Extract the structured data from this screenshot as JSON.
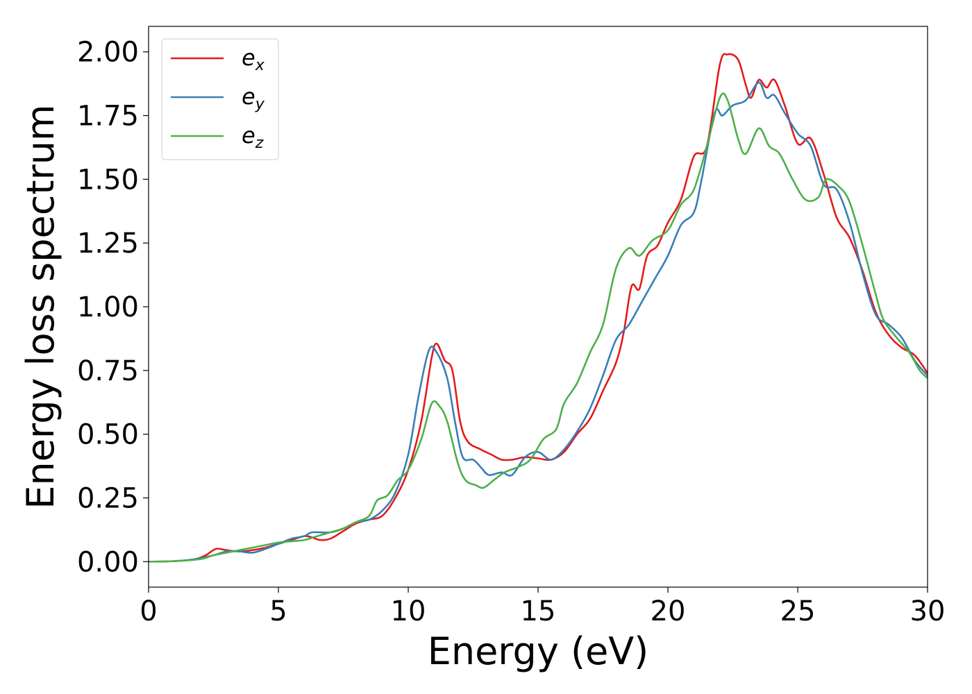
{
  "chart_data": {
    "type": "line",
    "title": "",
    "xlabel": "Energy (eV)",
    "ylabel": "Energy loss spectrum",
    "xlim": [
      0,
      30
    ],
    "ylim": [
      -0.1,
      2.1
    ],
    "xticks": [
      "0",
      "5",
      "10",
      "15",
      "20",
      "25",
      "30"
    ],
    "yticks": [
      "0.00",
      "0.25",
      "0.50",
      "0.75",
      "1.00",
      "1.25",
      "1.50",
      "1.75",
      "2.00"
    ],
    "grid": false,
    "legend_position": "top-left",
    "series": [
      {
        "name": "e",
        "subscript": "x",
        "color": "#e41a1c",
        "points": [
          [
            0,
            0
          ],
          [
            1,
            0.002
          ],
          [
            1.8,
            0.01
          ],
          [
            2.2,
            0.025
          ],
          [
            2.6,
            0.05
          ],
          [
            3,
            0.045
          ],
          [
            3.5,
            0.04
          ],
          [
            4,
            0.045
          ],
          [
            4.5,
            0.055
          ],
          [
            5,
            0.07
          ],
          [
            5.5,
            0.085
          ],
          [
            6,
            0.1
          ],
          [
            6.3,
            0.095
          ],
          [
            6.6,
            0.085
          ],
          [
            7,
            0.09
          ],
          [
            7.5,
            0.12
          ],
          [
            8,
            0.15
          ],
          [
            8.5,
            0.165
          ],
          [
            9,
            0.18
          ],
          [
            9.5,
            0.25
          ],
          [
            10,
            0.36
          ],
          [
            10.5,
            0.55
          ],
          [
            10.9,
            0.8
          ],
          [
            11.1,
            0.855
          ],
          [
            11.4,
            0.79
          ],
          [
            11.7,
            0.75
          ],
          [
            12,
            0.55
          ],
          [
            12.3,
            0.47
          ],
          [
            12.8,
            0.44
          ],
          [
            13.2,
            0.42
          ],
          [
            13.6,
            0.4
          ],
          [
            14,
            0.4
          ],
          [
            14.5,
            0.41
          ],
          [
            15,
            0.405
          ],
          [
            15.5,
            0.4
          ],
          [
            16,
            0.43
          ],
          [
            16.5,
            0.5
          ],
          [
            17,
            0.56
          ],
          [
            17.5,
            0.67
          ],
          [
            18,
            0.78
          ],
          [
            18.3,
            0.9
          ],
          [
            18.6,
            1.08
          ],
          [
            18.9,
            1.07
          ],
          [
            19.2,
            1.2
          ],
          [
            19.6,
            1.24
          ],
          [
            20,
            1.33
          ],
          [
            20.5,
            1.42
          ],
          [
            21,
            1.59
          ],
          [
            21.5,
            1.63
          ],
          [
            22,
            1.95
          ],
          [
            22.3,
            1.99
          ],
          [
            22.7,
            1.97
          ],
          [
            23,
            1.87
          ],
          [
            23.2,
            1.82
          ],
          [
            23.5,
            1.89
          ],
          [
            23.8,
            1.86
          ],
          [
            24.1,
            1.89
          ],
          [
            24.5,
            1.79
          ],
          [
            25,
            1.64
          ],
          [
            25.5,
            1.66
          ],
          [
            26,
            1.52
          ],
          [
            26.5,
            1.35
          ],
          [
            27,
            1.27
          ],
          [
            27.5,
            1.14
          ],
          [
            28,
            0.98
          ],
          [
            28.5,
            0.89
          ],
          [
            29,
            0.84
          ],
          [
            29.5,
            0.81
          ],
          [
            30,
            0.74
          ]
        ]
      },
      {
        "name": "e",
        "subscript": "y",
        "color": "#377eb8",
        "points": [
          [
            0,
            0
          ],
          [
            1,
            0.002
          ],
          [
            1.8,
            0.01
          ],
          [
            2.5,
            0.025
          ],
          [
            3,
            0.04
          ],
          [
            3.5,
            0.04
          ],
          [
            4,
            0.035
          ],
          [
            4.5,
            0.05
          ],
          [
            5,
            0.07
          ],
          [
            5.5,
            0.09
          ],
          [
            6,
            0.1
          ],
          [
            6.3,
            0.115
          ],
          [
            7,
            0.115
          ],
          [
            7.5,
            0.13
          ],
          [
            8,
            0.155
          ],
          [
            8.5,
            0.165
          ],
          [
            9,
            0.2
          ],
          [
            9.5,
            0.27
          ],
          [
            10,
            0.42
          ],
          [
            10.4,
            0.65
          ],
          [
            10.8,
            0.83
          ],
          [
            11.1,
            0.82
          ],
          [
            11.5,
            0.72
          ],
          [
            11.8,
            0.55
          ],
          [
            12.1,
            0.41
          ],
          [
            12.5,
            0.4
          ],
          [
            12.8,
            0.37
          ],
          [
            13.1,
            0.34
          ],
          [
            13.6,
            0.35
          ],
          [
            14,
            0.34
          ],
          [
            14.5,
            0.41
          ],
          [
            15,
            0.43
          ],
          [
            15.5,
            0.4
          ],
          [
            16,
            0.44
          ],
          [
            16.5,
            0.51
          ],
          [
            17,
            0.6
          ],
          [
            17.5,
            0.73
          ],
          [
            18,
            0.87
          ],
          [
            18.5,
            0.93
          ],
          [
            19,
            1.02
          ],
          [
            19.5,
            1.11
          ],
          [
            20,
            1.2
          ],
          [
            20.5,
            1.32
          ],
          [
            21,
            1.37
          ],
          [
            21.3,
            1.5
          ],
          [
            21.8,
            1.76
          ],
          [
            22.1,
            1.75
          ],
          [
            22.5,
            1.79
          ],
          [
            23,
            1.81
          ],
          [
            23.5,
            1.88
          ],
          [
            23.8,
            1.82
          ],
          [
            24.1,
            1.83
          ],
          [
            24.5,
            1.76
          ],
          [
            25,
            1.68
          ],
          [
            25.5,
            1.63
          ],
          [
            26,
            1.48
          ],
          [
            26.5,
            1.46
          ],
          [
            27,
            1.33
          ],
          [
            27.5,
            1.13
          ],
          [
            28,
            0.97
          ],
          [
            28.5,
            0.93
          ],
          [
            29,
            0.88
          ],
          [
            29.5,
            0.79
          ],
          [
            30,
            0.73
          ]
        ]
      },
      {
        "name": "e",
        "subscript": "z",
        "color": "#4daf4a",
        "points": [
          [
            0,
            0
          ],
          [
            1,
            0.002
          ],
          [
            2,
            0.01
          ],
          [
            2.5,
            0.025
          ],
          [
            3,
            0.035
          ],
          [
            3.5,
            0.045
          ],
          [
            4,
            0.055
          ],
          [
            4.5,
            0.065
          ],
          [
            5,
            0.075
          ],
          [
            5.5,
            0.08
          ],
          [
            6,
            0.085
          ],
          [
            6.5,
            0.1
          ],
          [
            7,
            0.115
          ],
          [
            7.5,
            0.13
          ],
          [
            8,
            0.155
          ],
          [
            8.5,
            0.18
          ],
          [
            8.8,
            0.24
          ],
          [
            9.2,
            0.26
          ],
          [
            9.6,
            0.32
          ],
          [
            10,
            0.36
          ],
          [
            10.5,
            0.48
          ],
          [
            10.9,
            0.62
          ],
          [
            11.2,
            0.61
          ],
          [
            11.5,
            0.55
          ],
          [
            11.9,
            0.39
          ],
          [
            12.2,
            0.32
          ],
          [
            12.6,
            0.3
          ],
          [
            12.9,
            0.29
          ],
          [
            13.3,
            0.32
          ],
          [
            13.7,
            0.35
          ],
          [
            14.2,
            0.37
          ],
          [
            14.7,
            0.4
          ],
          [
            15.2,
            0.48
          ],
          [
            15.7,
            0.52
          ],
          [
            16,
            0.62
          ],
          [
            16.5,
            0.7
          ],
          [
            17,
            0.82
          ],
          [
            17.5,
            0.93
          ],
          [
            18,
            1.15
          ],
          [
            18.5,
            1.23
          ],
          [
            18.9,
            1.2
          ],
          [
            19.4,
            1.26
          ],
          [
            20,
            1.3
          ],
          [
            20.5,
            1.4
          ],
          [
            21,
            1.46
          ],
          [
            21.5,
            1.63
          ],
          [
            22,
            1.82
          ],
          [
            22.3,
            1.81
          ],
          [
            22.7,
            1.66
          ],
          [
            23,
            1.6
          ],
          [
            23.5,
            1.7
          ],
          [
            23.9,
            1.63
          ],
          [
            24.3,
            1.6
          ],
          [
            24.8,
            1.5
          ],
          [
            25.3,
            1.42
          ],
          [
            25.8,
            1.43
          ],
          [
            26.1,
            1.5
          ],
          [
            26.6,
            1.47
          ],
          [
            27,
            1.41
          ],
          [
            27.5,
            1.24
          ],
          [
            28,
            1.05
          ],
          [
            28.3,
            0.95
          ],
          [
            28.8,
            0.88
          ],
          [
            29.3,
            0.82
          ],
          [
            29.7,
            0.75
          ],
          [
            30,
            0.72
          ]
        ]
      }
    ]
  }
}
